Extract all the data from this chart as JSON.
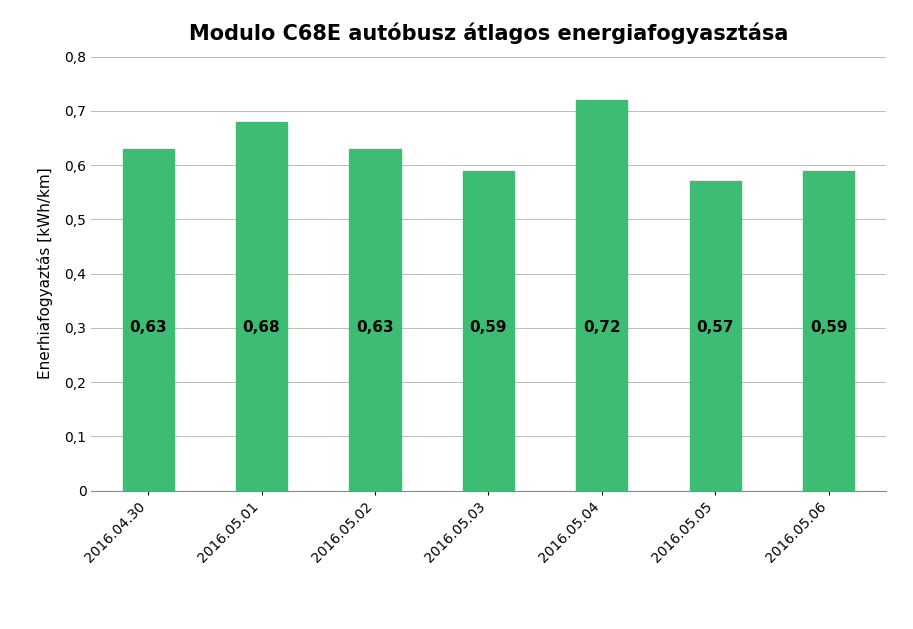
{
  "title": "Modulo C68E autóbusz átlagos energiafogyasztása",
  "categories": [
    "2016.04.30",
    "2016.05.01",
    "2016.05.02",
    "2016.05.03",
    "2016.05.04",
    "2016.05.05",
    "2016.05.06"
  ],
  "values": [
    0.63,
    0.68,
    0.63,
    0.59,
    0.72,
    0.57,
    0.59
  ],
  "bar_color": "#3DBD74",
  "ylabel": "Enerhiafogyaztás [kWh/km]",
  "ylim": [
    0,
    0.8
  ],
  "yticks": [
    0,
    0.1,
    0.2,
    0.3,
    0.4,
    0.5,
    0.6,
    0.7,
    0.8
  ],
  "ytick_labels": [
    "0",
    "0,1",
    "0,2",
    "0,3",
    "0,4",
    "0,5",
    "0,6",
    "0,7",
    "0,8"
  ],
  "title_fontsize": 15,
  "label_fontsize": 11,
  "tick_fontsize": 10,
  "bar_label_fontsize": 11,
  "background_color": "#FFFFFF",
  "grid_color": "#BBBBBB",
  "bar_label_color": "#000000",
  "bar_width": 0.45
}
